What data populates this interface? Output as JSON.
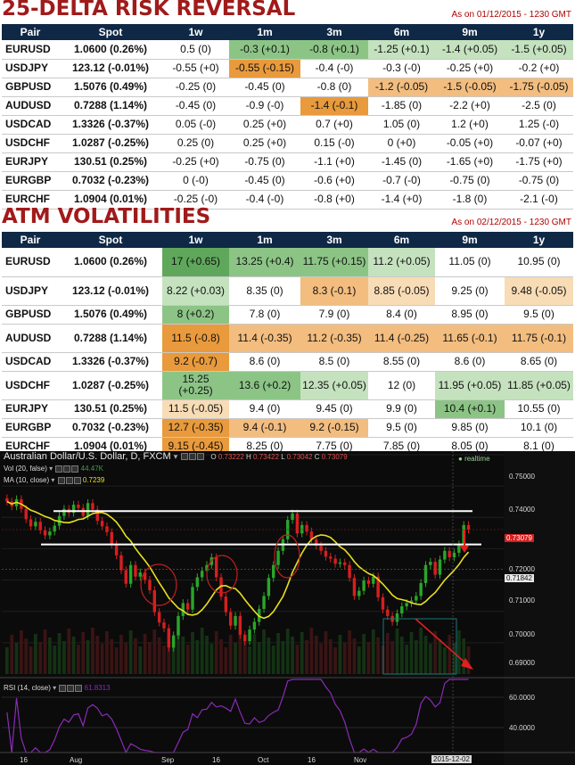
{
  "risk_reversal": {
    "title": "25-DELTA RISK REVERSAL",
    "as_of": "As on 01/12/2015 - 1230 GMT",
    "headers": [
      "Pair",
      "Spot",
      "1w",
      "1m",
      "3m",
      "6m",
      "9m",
      "1y"
    ],
    "rows": [
      {
        "pair": "EURUSD",
        "spot": "1.0600 (0.26%)",
        "cells": [
          "0.5 (0)",
          "-0.3 (+0.1)",
          "-0.8 (+0.1)",
          "-1.25 (+0.1)",
          "-1.4 (+0.05)",
          "-1.5 (+0.05)"
        ],
        "colors": [
          "",
          "c-mg",
          "c-mg",
          "c-lg",
          "c-lg",
          "c-lg"
        ]
      },
      {
        "pair": "USDJPY",
        "spot": "123.12 (-0.01%)",
        "cells": [
          "-0.55 (+0)",
          "-0.55 (-0.15)",
          "-0.4 (-0)",
          "-0.3 (-0)",
          "-0.25 (+0)",
          "-0.2 (+0)"
        ],
        "colors": [
          "",
          "c-do",
          "",
          "",
          "",
          ""
        ]
      },
      {
        "pair": "GBPUSD",
        "spot": "1.5076 (0.49%)",
        "cells": [
          "-0.25 (0)",
          "-0.45 (0)",
          "-0.8 (0)",
          "-1.2 (-0.05)",
          "-1.5 (-0.05)",
          "-1.75 (-0.05)"
        ],
        "colors": [
          "",
          "",
          "",
          "c-mo",
          "c-mo",
          "c-mo"
        ]
      },
      {
        "pair": "AUDUSD",
        "spot": "0.7288 (1.14%)",
        "cells": [
          "-0.45 (0)",
          "-0.9 (-0)",
          "-1.4 (-0.1)",
          "-1.85 (0)",
          "-2.2 (+0)",
          "-2.5 (0)"
        ],
        "colors": [
          "",
          "",
          "c-do",
          "",
          "",
          ""
        ]
      },
      {
        "pair": "USDCAD",
        "spot": "1.3326 (-0.37%)",
        "cells": [
          "0.05 (-0)",
          "0.25 (+0)",
          "0.7 (+0)",
          "1.05 (0)",
          "1.2 (+0)",
          "1.25 (-0)"
        ],
        "colors": [
          "",
          "",
          "",
          "",
          "",
          ""
        ]
      },
      {
        "pair": "USDCHF",
        "spot": "1.0287 (-0.25%)",
        "cells": [
          "0.25 (0)",
          "0.25 (+0)",
          "0.15 (-0)",
          "0 (+0)",
          "-0.05 (+0)",
          "-0.07 (+0)"
        ],
        "colors": [
          "",
          "",
          "",
          "",
          "",
          ""
        ]
      },
      {
        "pair": "EURJPY",
        "spot": "130.51 (0.25%)",
        "cells": [
          "-0.25 (+0)",
          "-0.75 (0)",
          "-1.1 (+0)",
          "-1.45 (0)",
          "-1.65 (+0)",
          "-1.75 (+0)"
        ],
        "colors": [
          "",
          "",
          "",
          "",
          "",
          ""
        ]
      },
      {
        "pair": "EURGBP",
        "spot": "0.7032 (-0.23%)",
        "cells": [
          "0 (-0)",
          "-0.45 (0)",
          "-0.6 (+0)",
          "-0.7 (-0)",
          "-0.75 (0)",
          "-0.75 (0)"
        ],
        "colors": [
          "",
          "",
          "",
          "",
          "",
          ""
        ]
      },
      {
        "pair": "EURCHF",
        "spot": "1.0904 (0.01%)",
        "cells": [
          "-0.25 (-0)",
          "-0.4 (-0)",
          "-0.8 (+0)",
          "-1.4 (+0)",
          "-1.8 (0)",
          "-2.1 (-0)"
        ],
        "colors": [
          "",
          "",
          "",
          "",
          "",
          ""
        ]
      }
    ]
  },
  "atm_vol": {
    "title": "ATM VOLATILITIES",
    "as_of": "As on 02/12/2015 - 1230 GMT",
    "headers": [
      "Pair",
      "Spot",
      "1w",
      "1m",
      "3m",
      "6m",
      "9m",
      "1y"
    ],
    "rows": [
      {
        "pair": "EURUSD",
        "spot": "1.0600 (0.26%)",
        "cells": [
          "17 (+0.65)",
          "13.25 (+0.4)",
          "11.75 (+0.15)",
          "11.2 (+0.05)",
          "11.05 (0)",
          "10.95 (0)"
        ],
        "colors": [
          "c-dg",
          "c-mg",
          "c-mg",
          "c-lg",
          "",
          ""
        ]
      },
      {
        "pair": "USDJPY",
        "spot": "123.12 (-0.01%)",
        "cells": [
          "8.22 (+0.03)",
          "8.35 (0)",
          "8.3 (-0.1)",
          "8.85 (-0.05)",
          "9.25 (0)",
          "9.48 (-0.05)"
        ],
        "colors": [
          "c-lg",
          "",
          "c-mo",
          "c-lo",
          "",
          "c-lo"
        ]
      },
      {
        "pair": "GBPUSD",
        "spot": "1.5076 (0.49%)",
        "cells": [
          "8 (+0.2)",
          "7.8 (0)",
          "7.9 (0)",
          "8.4 (0)",
          "8.95 (0)",
          "9.5 (0)"
        ],
        "colors": [
          "c-mg",
          "",
          "",
          "",
          "",
          ""
        ]
      },
      {
        "pair": "AUDUSD",
        "spot": "0.7288 (1.14%)",
        "cells": [
          "11.5 (-0.8)",
          "11.4 (-0.35)",
          "11.2 (-0.35)",
          "11.4 (-0.25)",
          "11.65 (-0.1)",
          "11.75 (-0.1)"
        ],
        "colors": [
          "c-do",
          "c-mo",
          "c-mo",
          "c-mo",
          "c-mo",
          "c-mo"
        ]
      },
      {
        "pair": "USDCAD",
        "spot": "1.3326 (-0.37%)",
        "cells": [
          "9.2 (-0.7)",
          "8.6 (0)",
          "8.5 (0)",
          "8.55 (0)",
          "8.6 (0)",
          "8.65 (0)"
        ],
        "colors": [
          "c-do",
          "",
          "",
          "",
          "",
          ""
        ]
      },
      {
        "pair": "USDCHF",
        "spot": "1.0287 (-0.25%)",
        "cells": [
          "15.25 (+0.25)",
          "13.6 (+0.2)",
          "12.35 (+0.05)",
          "12 (0)",
          "11.95 (+0.05)",
          "11.85 (+0.05)"
        ],
        "colors": [
          "c-mg",
          "c-mg",
          "c-lg",
          "",
          "c-lg",
          "c-lg"
        ]
      },
      {
        "pair": "EURJPY",
        "spot": "130.51 (0.25%)",
        "cells": [
          "11.5 (-0.05)",
          "9.4 (0)",
          "9.45 (0)",
          "9.9 (0)",
          "10.4 (+0.1)",
          "10.55 (0)"
        ],
        "colors": [
          "c-lo",
          "",
          "",
          "",
          "c-mg",
          ""
        ]
      },
      {
        "pair": "EURGBP",
        "spot": "0.7032 (-0.23%)",
        "cells": [
          "12.7 (-0.35)",
          "9.4 (-0.1)",
          "9.2 (-0.15)",
          "9.5 (0)",
          "9.85 (0)",
          "10.1 (0)"
        ],
        "colors": [
          "c-do",
          "c-mo",
          "c-mo",
          "",
          "",
          ""
        ]
      },
      {
        "pair": "EURCHF",
        "spot": "1.0904 (0.01%)",
        "cells": [
          "9.15 (-0.45)",
          "8.25 (0)",
          "7.75 (0)",
          "7.85 (0)",
          "8.05 (0)",
          "8.1 (0)"
        ],
        "colors": [
          "c-do",
          "",
          "",
          "",
          "",
          ""
        ]
      }
    ]
  },
  "chart": {
    "title": "Australian Dollar/U.S. Dollar, D, FXCM",
    "ohlc": {
      "o_label": "O",
      "o": "0.73222",
      "h_label": "H",
      "h": "0.73422",
      "l_label": "L",
      "l": "0.73042",
      "c_label": "C",
      "c": "0.73079"
    },
    "realtime_label": "realtime",
    "vol_label": "Vol (20, false)",
    "vol_value": "44.47K",
    "ma_label": "MA (10, close)",
    "ma_value": "0.7239",
    "rsi_label": "RSI (14, close)",
    "rsi_value": "61.8313",
    "price_axis": [
      "0.75000",
      "0.74000",
      "0.72000",
      "0.71000",
      "0.70000",
      "0.69000"
    ],
    "current_price": "0.73079",
    "cross_price": "0.71842",
    "rsi_axis": [
      "60.0000",
      "40.0000"
    ],
    "date_axis": [
      "16",
      "Aug",
      "Sep",
      "16",
      "Oct",
      "16",
      "Nov"
    ],
    "date_tag": "2015-12-02",
    "colors": {
      "up": "#2aa52a",
      "down": "#d61f1f",
      "ma": "#e8e020",
      "rsi": "#8a2bb8",
      "support": "#ffffff",
      "arrow": "#e02020",
      "box": "#1a7a7a"
    }
  },
  "chart_data": {
    "type": "candlestick",
    "title": "Australian Dollar/U.S. Dollar, D, FXCM",
    "dates_approx": "Jul 2015 - 2015-12-02",
    "ylim": [
      0.686,
      0.754
    ],
    "support_lines": [
      0.7365,
      0.7262
    ],
    "x": [
      "2015-07-20",
      "2015-07-21",
      "2015-07-22",
      "2015-07-23",
      "2015-07-24",
      "2015-07-27",
      "2015-07-28",
      "2015-07-29",
      "2015-07-30",
      "2015-07-31",
      "2015-08-03",
      "2015-08-04",
      "2015-08-05",
      "2015-08-06",
      "2015-08-07",
      "2015-08-10",
      "2015-08-11",
      "2015-08-12",
      "2015-08-13",
      "2015-08-14",
      "2015-08-17",
      "2015-08-18",
      "2015-08-19",
      "2015-08-20",
      "2015-08-21",
      "2015-08-24",
      "2015-08-25",
      "2015-08-26",
      "2015-08-27",
      "2015-08-28",
      "2015-08-31",
      "2015-09-01",
      "2015-09-02",
      "2015-09-03",
      "2015-09-04",
      "2015-09-07",
      "2015-09-08",
      "2015-09-09",
      "2015-09-10",
      "2015-09-11",
      "2015-09-14",
      "2015-09-15",
      "2015-09-16",
      "2015-09-17",
      "2015-09-18",
      "2015-09-21",
      "2015-09-22",
      "2015-09-23",
      "2015-09-24",
      "2015-09-25",
      "2015-09-28",
      "2015-09-29",
      "2015-09-30",
      "2015-10-01",
      "2015-10-02",
      "2015-10-05",
      "2015-10-06",
      "2015-10-07",
      "2015-10-08",
      "2015-10-09",
      "2015-10-12",
      "2015-10-13",
      "2015-10-14",
      "2015-10-15",
      "2015-10-16",
      "2015-10-19",
      "2015-10-20",
      "2015-10-21",
      "2015-10-22",
      "2015-10-23",
      "2015-10-26",
      "2015-10-27",
      "2015-10-28",
      "2015-10-29",
      "2015-10-30",
      "2015-11-02",
      "2015-11-03",
      "2015-11-04",
      "2015-11-05",
      "2015-11-06",
      "2015-11-09",
      "2015-11-10",
      "2015-11-11",
      "2015-11-12",
      "2015-11-13",
      "2015-11-16",
      "2015-11-17",
      "2015-11-18",
      "2015-11-19",
      "2015-11-20",
      "2015-11-23",
      "2015-11-24",
      "2015-11-25",
      "2015-11-26",
      "2015-11-27",
      "2015-11-30",
      "2015-12-01",
      "2015-12-02"
    ],
    "close": [
      0.7395,
      0.738,
      0.7402,
      0.7372,
      0.734,
      0.7318,
      0.7332,
      0.7306,
      0.729,
      0.7302,
      0.732,
      0.735,
      0.7372,
      0.736,
      0.7385,
      0.7375,
      0.735,
      0.739,
      0.737,
      0.7335,
      0.7318,
      0.73,
      0.7262,
      0.7228,
      0.7182,
      0.714,
      0.7198,
      0.7162,
      0.7175,
      0.7152,
      0.712,
      0.7052,
      0.702,
      0.7002,
      0.6942,
      0.698,
      0.704,
      0.708,
      0.706,
      0.713,
      0.716,
      0.718,
      0.7198,
      0.7222,
      0.716,
      0.71,
      0.7052,
      0.701,
      0.704,
      0.6982,
      0.6962,
      0.6998,
      0.7022,
      0.7062,
      0.7102,
      0.7158,
      0.7198,
      0.7242,
      0.7278,
      0.7338,
      0.7358,
      0.7296,
      0.7322,
      0.7302,
      0.7278,
      0.7258,
      0.7242,
      0.7224,
      0.7218,
      0.7202,
      0.7206,
      0.7198,
      0.7158,
      0.7102,
      0.7118,
      0.715,
      0.714,
      0.7162,
      0.7098,
      0.706,
      0.704,
      0.7022,
      0.7048,
      0.707,
      0.708,
      0.7088,
      0.7102,
      0.7142,
      0.7198,
      0.7208,
      0.7168,
      0.7215,
      0.7242,
      0.7222,
      0.7236,
      0.7262,
      0.7322,
      0.7308
    ]
  }
}
